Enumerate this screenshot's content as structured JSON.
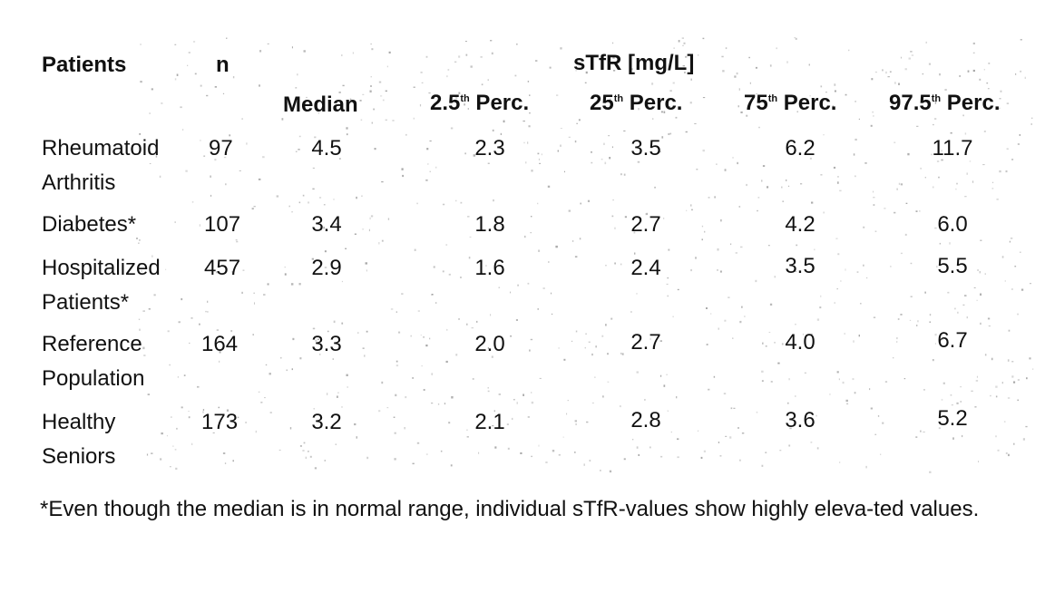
{
  "table": {
    "header": {
      "patients": "Patients",
      "n": "n",
      "group": "sTfR [mg/L]",
      "median": "Median",
      "p2_5": {
        "num": "2.5",
        "sup": "th",
        "rest": " Perc."
      },
      "p25": {
        "num": "25",
        "sup": "th",
        "rest": " Perc."
      },
      "p75": {
        "num": "75",
        "sup": "th",
        "rest": " Perc."
      },
      "p97_5": {
        "num": "97.5",
        "sup": "th",
        "rest": " Perc."
      }
    },
    "rows": [
      {
        "line1": "Rheumatoid",
        "line2": "Arthritis",
        "n": "97",
        "median": "4.5",
        "p2_5": "2.3",
        "p25": "3.5",
        "p75": "6.2",
        "p97_5": "11.7"
      },
      {
        "line1": "Diabetes*",
        "line2": "",
        "n": "107",
        "median": "3.4",
        "p2_5": "1.8",
        "p25": "2.7",
        "p75": "4.2",
        "p97_5": "6.0"
      },
      {
        "line1": "Hospitalized",
        "line2": "Patients*",
        "n": "457",
        "median": "2.9",
        "p2_5": "1.6",
        "p25": "2.4",
        "p75": "3.5",
        "p97_5": "5.5"
      },
      {
        "line1": "Reference",
        "line2": "Population",
        "n": "164",
        "median": "3.3",
        "p2_5": "2.0",
        "p25": "2.7",
        "p75": "4.0",
        "p97_5": "6.7"
      },
      {
        "line1": "Healthy",
        "line2": "Seniors",
        "n": "173",
        "median": "3.2",
        "p2_5": "2.1",
        "p25": "2.8",
        "p75": "3.6",
        "p97_5": "5.2"
      }
    ]
  },
  "footnote": "*Even though the median is in normal range, individual sTfR-values show highly eleva-ted values."
}
